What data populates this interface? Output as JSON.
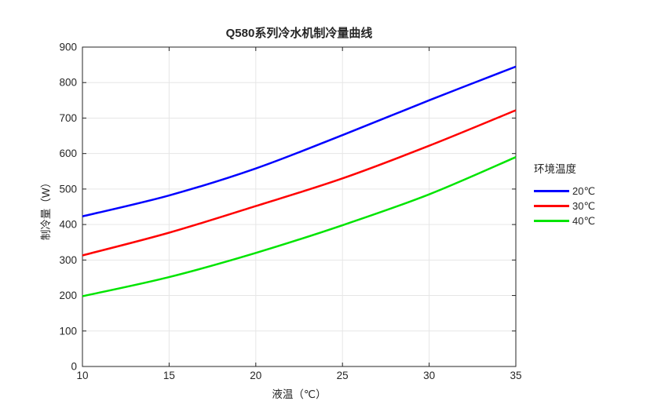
{
  "chart_data": {
    "type": "line",
    "title": "Q580系列冷水机制冷量曲线",
    "xlabel": "液温（℃）",
    "ylabel": "制冷量（W）",
    "x": [
      10,
      15,
      20,
      25,
      30,
      35
    ],
    "series": [
      {
        "name": "20℃",
        "color": "#0000ff",
        "values": [
          423,
          482,
          558,
          652,
          750,
          845
        ]
      },
      {
        "name": "30℃",
        "color": "#ff0000",
        "values": [
          313,
          377,
          452,
          530,
          622,
          722
        ]
      },
      {
        "name": "40℃",
        "color": "#00e400",
        "values": [
          198,
          252,
          320,
          398,
          485,
          590
        ]
      }
    ],
    "xlim": [
      10,
      35
    ],
    "ylim": [
      0,
      900
    ],
    "xticks": [
      10,
      15,
      20,
      25,
      30,
      35
    ],
    "yticks": [
      0,
      100,
      200,
      300,
      400,
      500,
      600,
      700,
      800,
      900
    ],
    "grid": true,
    "legend_title": "环境温度",
    "legend_position": "right-outside"
  },
  "colors": {
    "axis": "#262626",
    "grid": "#e6e6e6",
    "background": "#ffffff",
    "text": "#262626"
  }
}
